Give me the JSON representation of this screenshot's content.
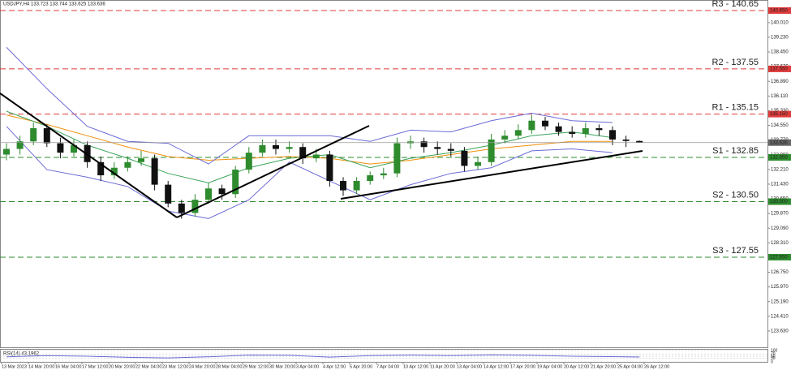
{
  "chart_data": {
    "type": "candlestick",
    "title": "USDJPY,H4 133.723 133.744 133.625 133.636",
    "x_labels": [
      "13 Mar 2023",
      "14 Mar 20:00",
      "16 Mar 04:00",
      "17 Mar 12:00",
      "20 Mar 20:00",
      "22 Mar 04:00",
      "23 Mar 12:00",
      "24 Mar 20:00",
      "28 Mar 04:00",
      "29 Mar 12:00",
      "30 Mar 20:00",
      "3 Apr 04:00",
      "4 Apr 12:00",
      "5 Apr 20:00",
      "7 Apr 04:00",
      "10 Apr 12:00",
      "11 Apr 20:00",
      "13 Apr 04:00",
      "14 Apr 12:00",
      "17 Apr 20:00",
      "19 Apr 04:00",
      "20 Apr 12:00",
      "21 Apr 20:00",
      "25 Apr 04:00",
      "26 Apr 12:00"
    ],
    "open": [
      133.0,
      133.3,
      133.7,
      134.4,
      133.6,
      133.1,
      133.5,
      132.6,
      131.9,
      132.3,
      132.6,
      132.8,
      131.4,
      130.4,
      129.9,
      130.6,
      131.2,
      130.9,
      132.2,
      133.1,
      133.5,
      133.3,
      133.4,
      132.8,
      133.0,
      131.6,
      131.1,
      131.6,
      131.9,
      132.0,
      133.6,
      133.7,
      133.4,
      133.3,
      133.2,
      132.4,
      132.6,
      133.8,
      134.0,
      134.3,
      134.8,
      134.5,
      134.2,
      134.1,
      134.4,
      134.3,
      133.8,
      133.723
    ],
    "high": [
      133.6,
      134.0,
      134.7,
      134.6,
      133.9,
      133.8,
      133.7,
      132.9,
      132.6,
      132.9,
      133.2,
      133.0,
      131.6,
      130.6,
      130.9,
      131.5,
      131.4,
      132.4,
      133.4,
      133.8,
      133.8,
      133.7,
      133.6,
      133.3,
      133.2,
      131.8,
      131.8,
      132.1,
      132.3,
      133.9,
      134.0,
      133.9,
      133.7,
      133.6,
      133.4,
      132.9,
      134.1,
      134.3,
      134.6,
      135.1,
      135.0,
      134.7,
      134.5,
      134.7,
      134.6,
      134.5,
      134.0,
      133.744
    ],
    "low": [
      132.7,
      133.0,
      133.5,
      133.4,
      132.8,
      132.9,
      132.3,
      131.6,
      131.7,
      132.1,
      132.4,
      131.1,
      130.2,
      129.6,
      129.7,
      130.4,
      130.6,
      130.7,
      132.0,
      132.9,
      133.0,
      133.1,
      132.5,
      132.6,
      131.3,
      130.8,
      130.9,
      131.4,
      131.7,
      131.8,
      133.3,
      133.1,
      133.0,
      132.9,
      132.1,
      132.2,
      132.4,
      133.6,
      133.8,
      134.1,
      134.3,
      134.0,
      133.9,
      133.9,
      134.0,
      133.5,
      133.4,
      133.625
    ],
    "close": [
      133.3,
      133.7,
      134.4,
      133.6,
      133.1,
      133.5,
      132.6,
      131.9,
      132.3,
      132.6,
      132.8,
      131.4,
      130.4,
      129.9,
      130.6,
      131.2,
      130.9,
      132.2,
      133.1,
      133.5,
      133.3,
      133.4,
      132.8,
      133.0,
      131.6,
      131.1,
      131.6,
      131.9,
      132.0,
      133.6,
      133.7,
      133.4,
      133.3,
      133.2,
      132.4,
      132.6,
      133.8,
      134.0,
      134.3,
      134.8,
      134.5,
      134.2,
      134.1,
      134.4,
      134.3,
      133.8,
      133.723,
      133.636
    ],
    "up_color": "#2e8b2e",
    "down_color": "#111111",
    "ylim": [
      123.54,
      141.21
    ],
    "yticks": [
      {
        "value": 140.01,
        "label": "140.010"
      },
      {
        "value": 139.23,
        "label": "139.230"
      },
      {
        "value": 138.45,
        "label": "138.450"
      },
      {
        "value": 137.67,
        "label": "137.670"
      },
      {
        "value": 136.89,
        "label": "136.890"
      },
      {
        "value": 136.11,
        "label": "136.110"
      },
      {
        "value": 135.33,
        "label": "135.330"
      },
      {
        "value": 134.55,
        "label": "134.550"
      },
      {
        "value": 133.77,
        "label": "133.770"
      },
      {
        "value": 132.99,
        "label": "132.990"
      },
      {
        "value": 132.21,
        "label": "132.210"
      },
      {
        "value": 131.43,
        "label": "131.430"
      },
      {
        "value": 130.65,
        "label": "130.650"
      },
      {
        "value": 129.87,
        "label": "129.870"
      },
      {
        "value": 129.09,
        "label": "129.090"
      },
      {
        "value": 128.31,
        "label": "128.310"
      },
      {
        "value": 127.53,
        "label": "127.530"
      },
      {
        "value": 126.75,
        "label": "126.750"
      },
      {
        "value": 125.97,
        "label": "125.970"
      },
      {
        "value": 125.19,
        "label": "125.190"
      },
      {
        "value": 124.41,
        "label": "124.410"
      },
      {
        "value": 123.63,
        "label": "123.630"
      }
    ],
    "levels": [
      {
        "name": "R3 - 140.65",
        "value": 140.65,
        "label": "140.650",
        "color": "#e03b3b"
      },
      {
        "name": "R2 - 137.55",
        "value": 137.55,
        "label": "137.550",
        "color": "#e03b3b"
      },
      {
        "name": "R1 - 135.15",
        "value": 135.15,
        "label": "135.150",
        "color": "#e03b3b"
      },
      {
        "name": "S1 - 132.85",
        "value": 132.85,
        "label": "132.850",
        "color": "#2e8b2e"
      },
      {
        "name": "S2 - 130.50",
        "value": 130.5,
        "label": "130.500",
        "color": "#2e8b2e"
      },
      {
        "name": "S3 - 127.55",
        "value": 127.55,
        "label": "127.550",
        "color": "#2e8b2e"
      }
    ],
    "current_price": {
      "value": 133.636,
      "label": "133.636"
    },
    "overlays": [
      {
        "color": "#f0900a",
        "x": [
          0,
          3,
          6,
          9,
          12,
          15,
          18,
          21,
          24,
          27,
          30,
          33,
          36,
          39,
          42,
          45
        ],
        "values": [
          135.1,
          134.6,
          134.0,
          133.4,
          132.9,
          132.7,
          132.8,
          132.9,
          132.8,
          132.5,
          132.7,
          133.0,
          133.3,
          133.5,
          133.7,
          133.7
        ]
      },
      {
        "color": "#3aa35a",
        "x": [
          0,
          3,
          6,
          9,
          12,
          15,
          18,
          21,
          24,
          27,
          30,
          33,
          36,
          39,
          42,
          45
        ],
        "values": [
          135.3,
          134.5,
          133.5,
          132.8,
          132.0,
          131.5,
          132.3,
          132.8,
          133.0,
          132.3,
          132.8,
          133.1,
          133.5,
          134.0,
          134.2,
          133.9
        ]
      },
      {
        "color": "#6b6bd6",
        "x": [
          0,
          3,
          6,
          9,
          12,
          15,
          18,
          21,
          24,
          27,
          30,
          33,
          36,
          39,
          42,
          45
        ],
        "values": [
          138.7,
          136.5,
          134.5,
          133.7,
          133.6,
          132.5,
          134.0,
          134.0,
          134.0,
          133.7,
          134.3,
          134.2,
          134.8,
          135.2,
          134.8,
          134.7
        ]
      },
      {
        "color": "#6b6bd6",
        "x": [
          0,
          3,
          6,
          9,
          12,
          15,
          18,
          21,
          24,
          27,
          30,
          33,
          36,
          39,
          42,
          45
        ],
        "values": [
          134.5,
          132.2,
          131.8,
          131.3,
          130.0,
          129.6,
          130.6,
          132.6,
          131.6,
          130.6,
          131.4,
          132.0,
          132.3,
          133.2,
          133.3,
          133.1
        ]
      }
    ],
    "rsi": {
      "title": "RSI(14) 43.1962",
      "ylim": [
        0,
        100
      ],
      "yticks": [
        100,
        70,
        50,
        30,
        0
      ],
      "color": "#6b6bd6",
      "x": [
        0,
        3,
        6,
        9,
        12,
        15,
        18,
        21,
        24,
        27,
        30,
        33,
        36,
        39,
        42,
        47
      ],
      "values": [
        45,
        55,
        50,
        40,
        35,
        45,
        60,
        58,
        42,
        55,
        60,
        55,
        62,
        58,
        50,
        43.1962
      ]
    }
  }
}
